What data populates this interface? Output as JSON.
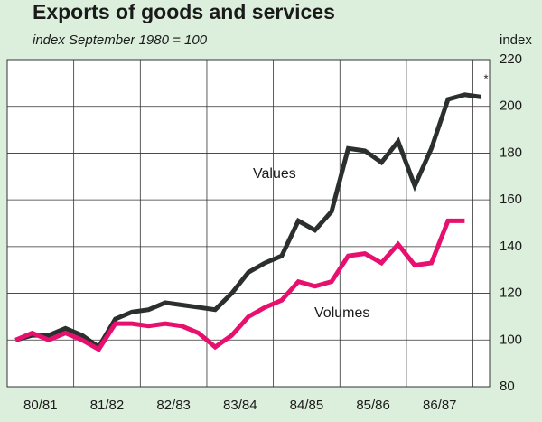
{
  "chart_data": {
    "type": "line",
    "title": "Exports of goods and services",
    "subtitle": "index September 1980 = 100",
    "y_axis_label": "index",
    "annotations": [
      "Values",
      "Volumes",
      "*"
    ],
    "xlim": [
      -0.5,
      28.5
    ],
    "xticks": [
      {
        "value": 1.5,
        "label": "80/81"
      },
      {
        "value": 5.5,
        "label": "81/82"
      },
      {
        "value": 9.5,
        "label": "82/83"
      },
      {
        "value": 13.5,
        "label": "83/84"
      },
      {
        "value": 17.5,
        "label": "84/85"
      },
      {
        "value": 21.5,
        "label": "85/86"
      },
      {
        "value": 25.5,
        "label": "86/87"
      }
    ],
    "xgrid": [
      3.5,
      7.5,
      11.5,
      15.5,
      19.5,
      23.5,
      27.5
    ],
    "ylim": [
      80,
      220
    ],
    "yticks": [
      80,
      100,
      120,
      140,
      160,
      180,
      200,
      220
    ],
    "grid": true,
    "series": [
      {
        "name": "Values",
        "color": "#2b2f2d",
        "values": [
          100,
          102,
          102,
          105,
          102,
          97,
          109,
          112,
          113,
          116,
          115,
          114,
          113,
          120,
          129,
          133,
          136,
          151,
          147,
          155,
          182,
          181,
          176,
          185,
          166,
          182,
          203,
          205,
          204
        ]
      },
      {
        "name": "Volumes",
        "color": "#e8106e",
        "values": [
          100,
          103,
          100,
          103,
          100,
          96,
          107,
          107,
          106,
          107,
          106,
          103,
          97,
          102,
          110,
          114,
          117,
          125,
          123,
          125,
          136,
          137,
          133,
          141,
          132,
          133,
          151,
          151
        ]
      }
    ]
  }
}
